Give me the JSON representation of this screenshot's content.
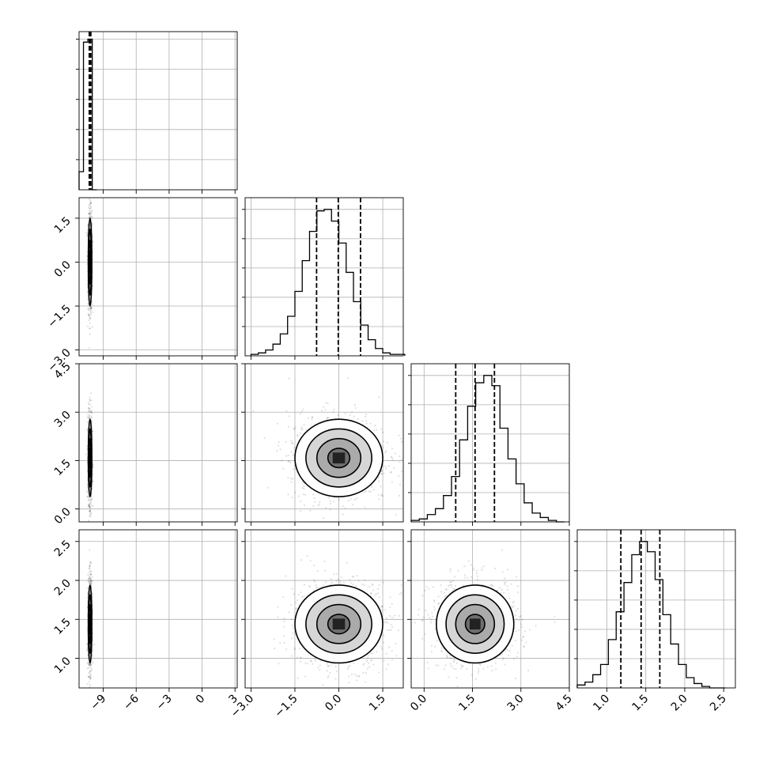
{
  "chart_data": {
    "type": "corner",
    "n_params": 4,
    "grid": true,
    "axis_ranges": [
      [
        -11.2,
        3.2
      ],
      [
        -3.2,
        2.2
      ],
      [
        -0.4,
        4.5
      ],
      [
        0.62,
        2.65
      ]
    ],
    "ticks": [
      {
        "values": [
          -9,
          -6,
          -3,
          0,
          3
        ],
        "labels": [
          "−9",
          "−6",
          "−3",
          "0",
          "3"
        ]
      },
      {
        "values": [
          -3.0,
          -1.5,
          0.0,
          1.5
        ],
        "labels": [
          "−3.0",
          "−1.5",
          "0.0",
          "1.5"
        ]
      },
      {
        "values": [
          0.0,
          1.5,
          3.0,
          4.5
        ],
        "labels": [
          "0.0",
          "1.5",
          "3.0",
          "4.5"
        ]
      },
      {
        "values": [
          1.0,
          1.5,
          2.0,
          2.5
        ],
        "labels": [
          "1.0",
          "1.5",
          "2.0",
          "2.5"
        ]
      }
    ],
    "marginals": [
      {
        "param": 0,
        "bin_edges": [
          -11.2,
          -10.8,
          -10.4,
          -10.0,
          -9.6
        ],
        "counts": [
          0.12,
          0.98,
          1.0,
          0.0
        ],
        "ylim": [
          0,
          1.05
        ],
        "quantiles": [
          -10.27,
          -10.2,
          -10.13
        ]
      },
      {
        "param": 1,
        "bin_edges": [
          -3.0,
          -2.75,
          -2.5,
          -2.25,
          -2.0,
          -1.75,
          -1.5,
          -1.25,
          -1.0,
          -0.75,
          -0.5,
          -0.25,
          0.0,
          0.25,
          0.5,
          0.75,
          1.0,
          1.25,
          1.5,
          1.75,
          2.0,
          2.25
        ],
        "counts": [
          0.01,
          0.02,
          0.04,
          0.08,
          0.15,
          0.27,
          0.44,
          0.65,
          0.85,
          0.99,
          1.0,
          0.92,
          0.77,
          0.57,
          0.37,
          0.21,
          0.11,
          0.05,
          0.02,
          0.01,
          0.01
        ],
        "ylim": [
          0,
          1.08
        ],
        "quantiles": [
          -0.76,
          -0.02,
          0.74
        ]
      },
      {
        "param": 2,
        "bin_edges": [
          -0.4,
          -0.15,
          0.1,
          0.35,
          0.6,
          0.85,
          1.1,
          1.35,
          1.6,
          1.85,
          2.1,
          2.35,
          2.6,
          2.85,
          3.1,
          3.35,
          3.6,
          3.85,
          4.1,
          4.35
        ],
        "counts": [
          0.01,
          0.02,
          0.05,
          0.09,
          0.18,
          0.31,
          0.56,
          0.79,
          0.95,
          1.0,
          0.93,
          0.64,
          0.43,
          0.26,
          0.13,
          0.06,
          0.03,
          0.01,
          0.0
        ],
        "ylim": [
          0,
          1.08
        ],
        "quantiles": [
          0.98,
          1.58,
          2.18
        ]
      },
      {
        "param": 3,
        "bin_edges": [
          0.62,
          0.72,
          0.82,
          0.92,
          1.02,
          1.12,
          1.22,
          1.32,
          1.42,
          1.52,
          1.62,
          1.72,
          1.82,
          1.92,
          2.02,
          2.12,
          2.22,
          2.32,
          2.42,
          2.52
        ],
        "counts": [
          0.02,
          0.04,
          0.09,
          0.16,
          0.33,
          0.52,
          0.72,
          0.91,
          1.0,
          0.93,
          0.74,
          0.5,
          0.3,
          0.16,
          0.07,
          0.03,
          0.01,
          0.0,
          0.0
        ],
        "ylim": [
          0,
          1.08
        ],
        "quantiles": [
          1.18,
          1.44,
          1.68
        ]
      }
    ],
    "joint": [
      {
        "x": 0,
        "y": 1,
        "mean": [
          -10.2,
          0.0
        ],
        "std": [
          0.08,
          0.75
        ]
      },
      {
        "x": 0,
        "y": 2,
        "mean": [
          -10.2,
          1.58
        ],
        "std": [
          0.08,
          0.6
        ]
      },
      {
        "x": 1,
        "y": 2,
        "mean": [
          0.0,
          1.58
        ],
        "std": [
          0.75,
          0.6
        ]
      },
      {
        "x": 0,
        "y": 3,
        "mean": [
          -10.2,
          1.44
        ],
        "std": [
          0.08,
          0.25
        ]
      },
      {
        "x": 1,
        "y": 3,
        "mean": [
          0.0,
          1.44
        ],
        "std": [
          0.75,
          0.25
        ]
      },
      {
        "x": 2,
        "y": 3,
        "mean": [
          1.58,
          1.44
        ],
        "std": [
          0.6,
          0.25
        ]
      }
    ],
    "contour_sigmas": [
      0.5,
      1.0,
      1.5,
      2.0
    ]
  }
}
